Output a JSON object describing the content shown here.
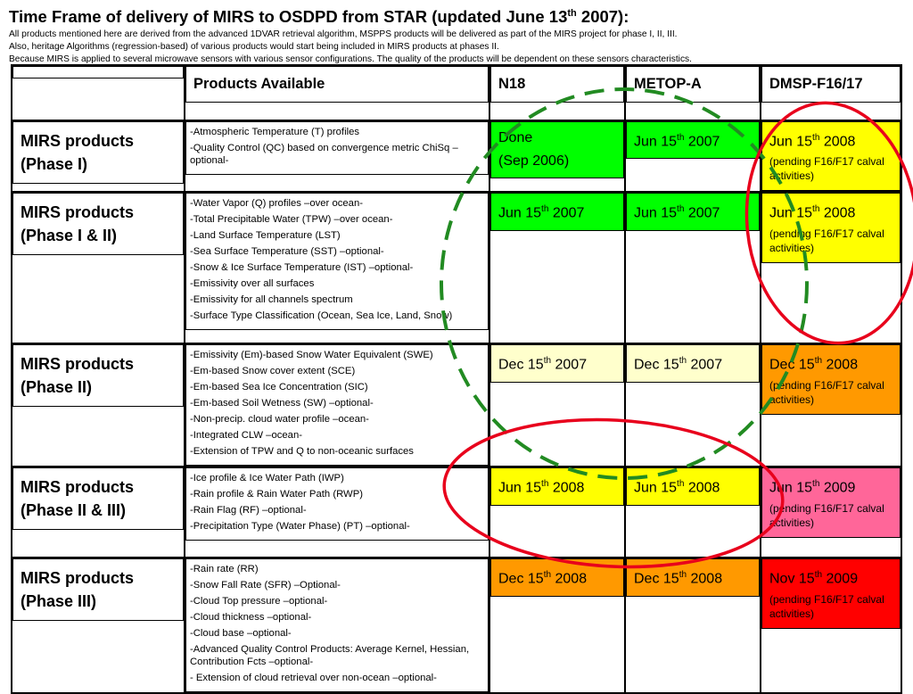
{
  "title": {
    "main": "Time Frame of delivery of MIRS to OSDPD from STAR (updated June 13",
    "sup": "th",
    "tail": " 2007):"
  },
  "notes": [
    "All products mentioned here are derived from the advanced 1DVAR retrieval algorithm, MSPPS products will be delivered as part of the MIRS project for phase I, II, III.",
    "Also, heritage Algorithms (regression-based) of various products would start being included in MIRS products at phases II.",
    "Because MIRS is applied to several microwave sensors with various sensor configurations. The quality of the products will be dependent on these sensors characteristics."
  ],
  "headers": {
    "blank": "",
    "products": "Products Available",
    "n18": "N18",
    "metop": "METOP-A",
    "dmsp": "DMSP-F16/17"
  },
  "rows": [
    {
      "phase": [
        "MIRS products",
        "(Phase I)"
      ],
      "products": [
        "-Atmospheric Temperature (T) profiles",
        "-Quality Control (QC) based on convergence metric ChiSq –optional-"
      ],
      "n18": {
        "a": "Done",
        "b": "(Sep 2006)"
      },
      "metop": {
        "a": "Jun 15",
        "sup": "th",
        "b": " 2007"
      },
      "dmsp": {
        "a": "Jun 15",
        "sup": "th",
        "b": " 2008",
        "note": "(pending F16/F17 calval activities)"
      }
    },
    {
      "phase": [
        "MIRS products",
        "(Phase I & II)"
      ],
      "products": [
        "-Water Vapor (Q)  profiles –over ocean-",
        "-Total Precipitable Water (TPW) –over ocean-",
        "-Land Surface Temperature (LST)",
        "-Sea  Surface Temperature (SST) –optional-",
        "-Snow & Ice Surface Temperature (IST)  –optional-",
        "-Emissivity over all surfaces",
        "-Emissivity for all channels spectrum",
        "-Surface Type Classification (Ocean, Sea Ice, Land, Snow)"
      ],
      "n18": {
        "a": "Jun 15",
        "sup": "th",
        "b": " 2007"
      },
      "metop": {
        "a": "Jun 15",
        "sup": "th",
        "b": " 2007"
      },
      "dmsp": {
        "a": "Jun 15",
        "sup": "th",
        "b": " 2008",
        "note": "(pending F16/F17 calval activities)"
      }
    },
    {
      "phase": [
        "MIRS products",
        "(Phase II)"
      ],
      "products": [
        "-Emissivity (Em)-based Snow Water Equivalent (SWE)",
        "-Em-based Snow cover extent (SCE)",
        "-Em-based Sea Ice Concentration (SIC)",
        "-Em-based Soil Wetness (SW) –optional-",
        "-Non-precip. cloud water profile –ocean-",
        "-Integrated CLW –ocean-",
        "-Extension of TPW and Q to non-oceanic surfaces"
      ],
      "n18": {
        "a": "Dec 15",
        "sup": "th",
        "b": " 2007"
      },
      "metop": {
        "a": "Dec 15",
        "sup": "th",
        "b": " 2007"
      },
      "dmsp": {
        "a": "Dec 15",
        "sup": "th",
        "b": " 2008",
        "note": "(pending F16/F17 calval activities)"
      }
    },
    {
      "phase": [
        "MIRS products",
        "(Phase II & III)"
      ],
      "products": [
        "-Ice profile & Ice Water Path (IWP)",
        "-Rain profile & Rain Water Path (RWP)",
        "-Rain Flag (RF) –optional-",
        "-Precipitation Type (Water Phase) (PT) –optional-"
      ],
      "n18": {
        "a": "Jun 15",
        "sup": "th",
        "b": " 2008"
      },
      "metop": {
        "a": "Jun 15",
        "sup": "th",
        "b": " 2008"
      },
      "dmsp": {
        "a": "Jun 15",
        "sup": "th",
        "b": " 2009",
        "note": "(pending F16/F17 calval activities)"
      }
    },
    {
      "phase": [
        "MIRS products",
        "(Phase III)"
      ],
      "products": [
        "-Rain rate (RR)",
        "-Snow Fall Rate (SFR) –Optional-",
        "-Cloud Top pressure –optional-",
        "-Cloud thickness –optional-",
        "-Cloud base –optional-",
        "-Advanced Quality Control Products: Average Kernel, Hessian, Contribution Fcts –optional-",
        "- Extension of cloud retrieval over non-ocean –optional-"
      ],
      "n18": {
        "a": "Dec 15",
        "sup": "th",
        "b": " 2008"
      },
      "metop": {
        "a": "Dec 15",
        "sup": "th",
        "b": " 2008"
      },
      "dmsp": {
        "a": "Nov 15",
        "sup": "th",
        "b": " 2009",
        "note": "(pending F16/F17 calval activities)"
      }
    }
  ],
  "colors": {
    "done_green": "#00ff00",
    "yellow": "#ffff00",
    "light_yellow": "#ffffcc",
    "orange": "#ff9900",
    "pink": "#ff6699",
    "red": "#ff0000",
    "dashed_circle": "#228b22",
    "red_circle": "#e8001c"
  }
}
